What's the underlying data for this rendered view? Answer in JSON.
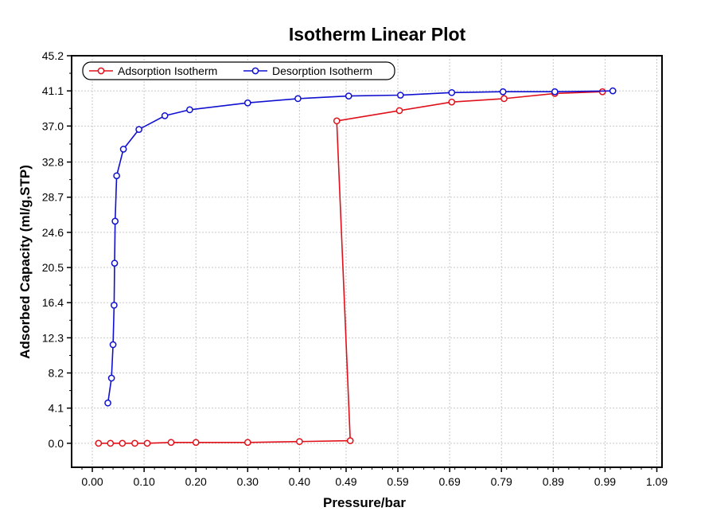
{
  "chart_data": {
    "type": "line",
    "title": "Isotherm Linear Plot",
    "xlabel": "Pressure/bar",
    "ylabel": "Adsorbed Capacity (ml/g,STP)",
    "xlim": [
      -0.04,
      1.1
    ],
    "ylim": [
      -2.8,
      45.2
    ],
    "xticks": [
      "0.00",
      "0.10",
      "0.20",
      "0.30",
      "0.40",
      "0.49",
      "0.59",
      "0.69",
      "0.79",
      "0.89",
      "0.99",
      "1.09"
    ],
    "yticks": [
      "0.0",
      "4.1",
      "8.2",
      "12.3",
      "16.4",
      "20.5",
      "24.6",
      "28.7",
      "32.8",
      "37.0",
      "41.1",
      "45.2"
    ],
    "grid": true,
    "legend_position": "top-left",
    "series": [
      {
        "name": "Adsorption Isotherm",
        "color": "#e0101a",
        "x": [
          0.012,
          0.035,
          0.058,
          0.082,
          0.106,
          0.152,
          0.2,
          0.3,
          0.4,
          0.498,
          0.472,
          0.593,
          0.694,
          0.795,
          0.893,
          0.985
        ],
        "y": [
          0.0,
          0.0,
          0.0,
          0.0,
          0.0,
          0.1,
          0.1,
          0.1,
          0.2,
          0.3,
          37.6,
          38.8,
          39.8,
          40.2,
          40.8,
          41.0
        ]
      },
      {
        "name": "Desorption Isotherm",
        "color": "#1010d0",
        "x": [
          1.005,
          0.893,
          0.793,
          0.694,
          0.595,
          0.495,
          0.397,
          0.3,
          0.188,
          0.14,
          0.09,
          0.06,
          0.047,
          0.044,
          0.043,
          0.042,
          0.04,
          0.037,
          0.03
        ],
        "y": [
          41.1,
          41.0,
          41.0,
          40.9,
          40.6,
          40.5,
          40.2,
          39.7,
          38.9,
          38.2,
          36.6,
          34.3,
          31.2,
          25.9,
          21.0,
          16.1,
          11.5,
          7.6,
          4.7
        ]
      }
    ]
  }
}
